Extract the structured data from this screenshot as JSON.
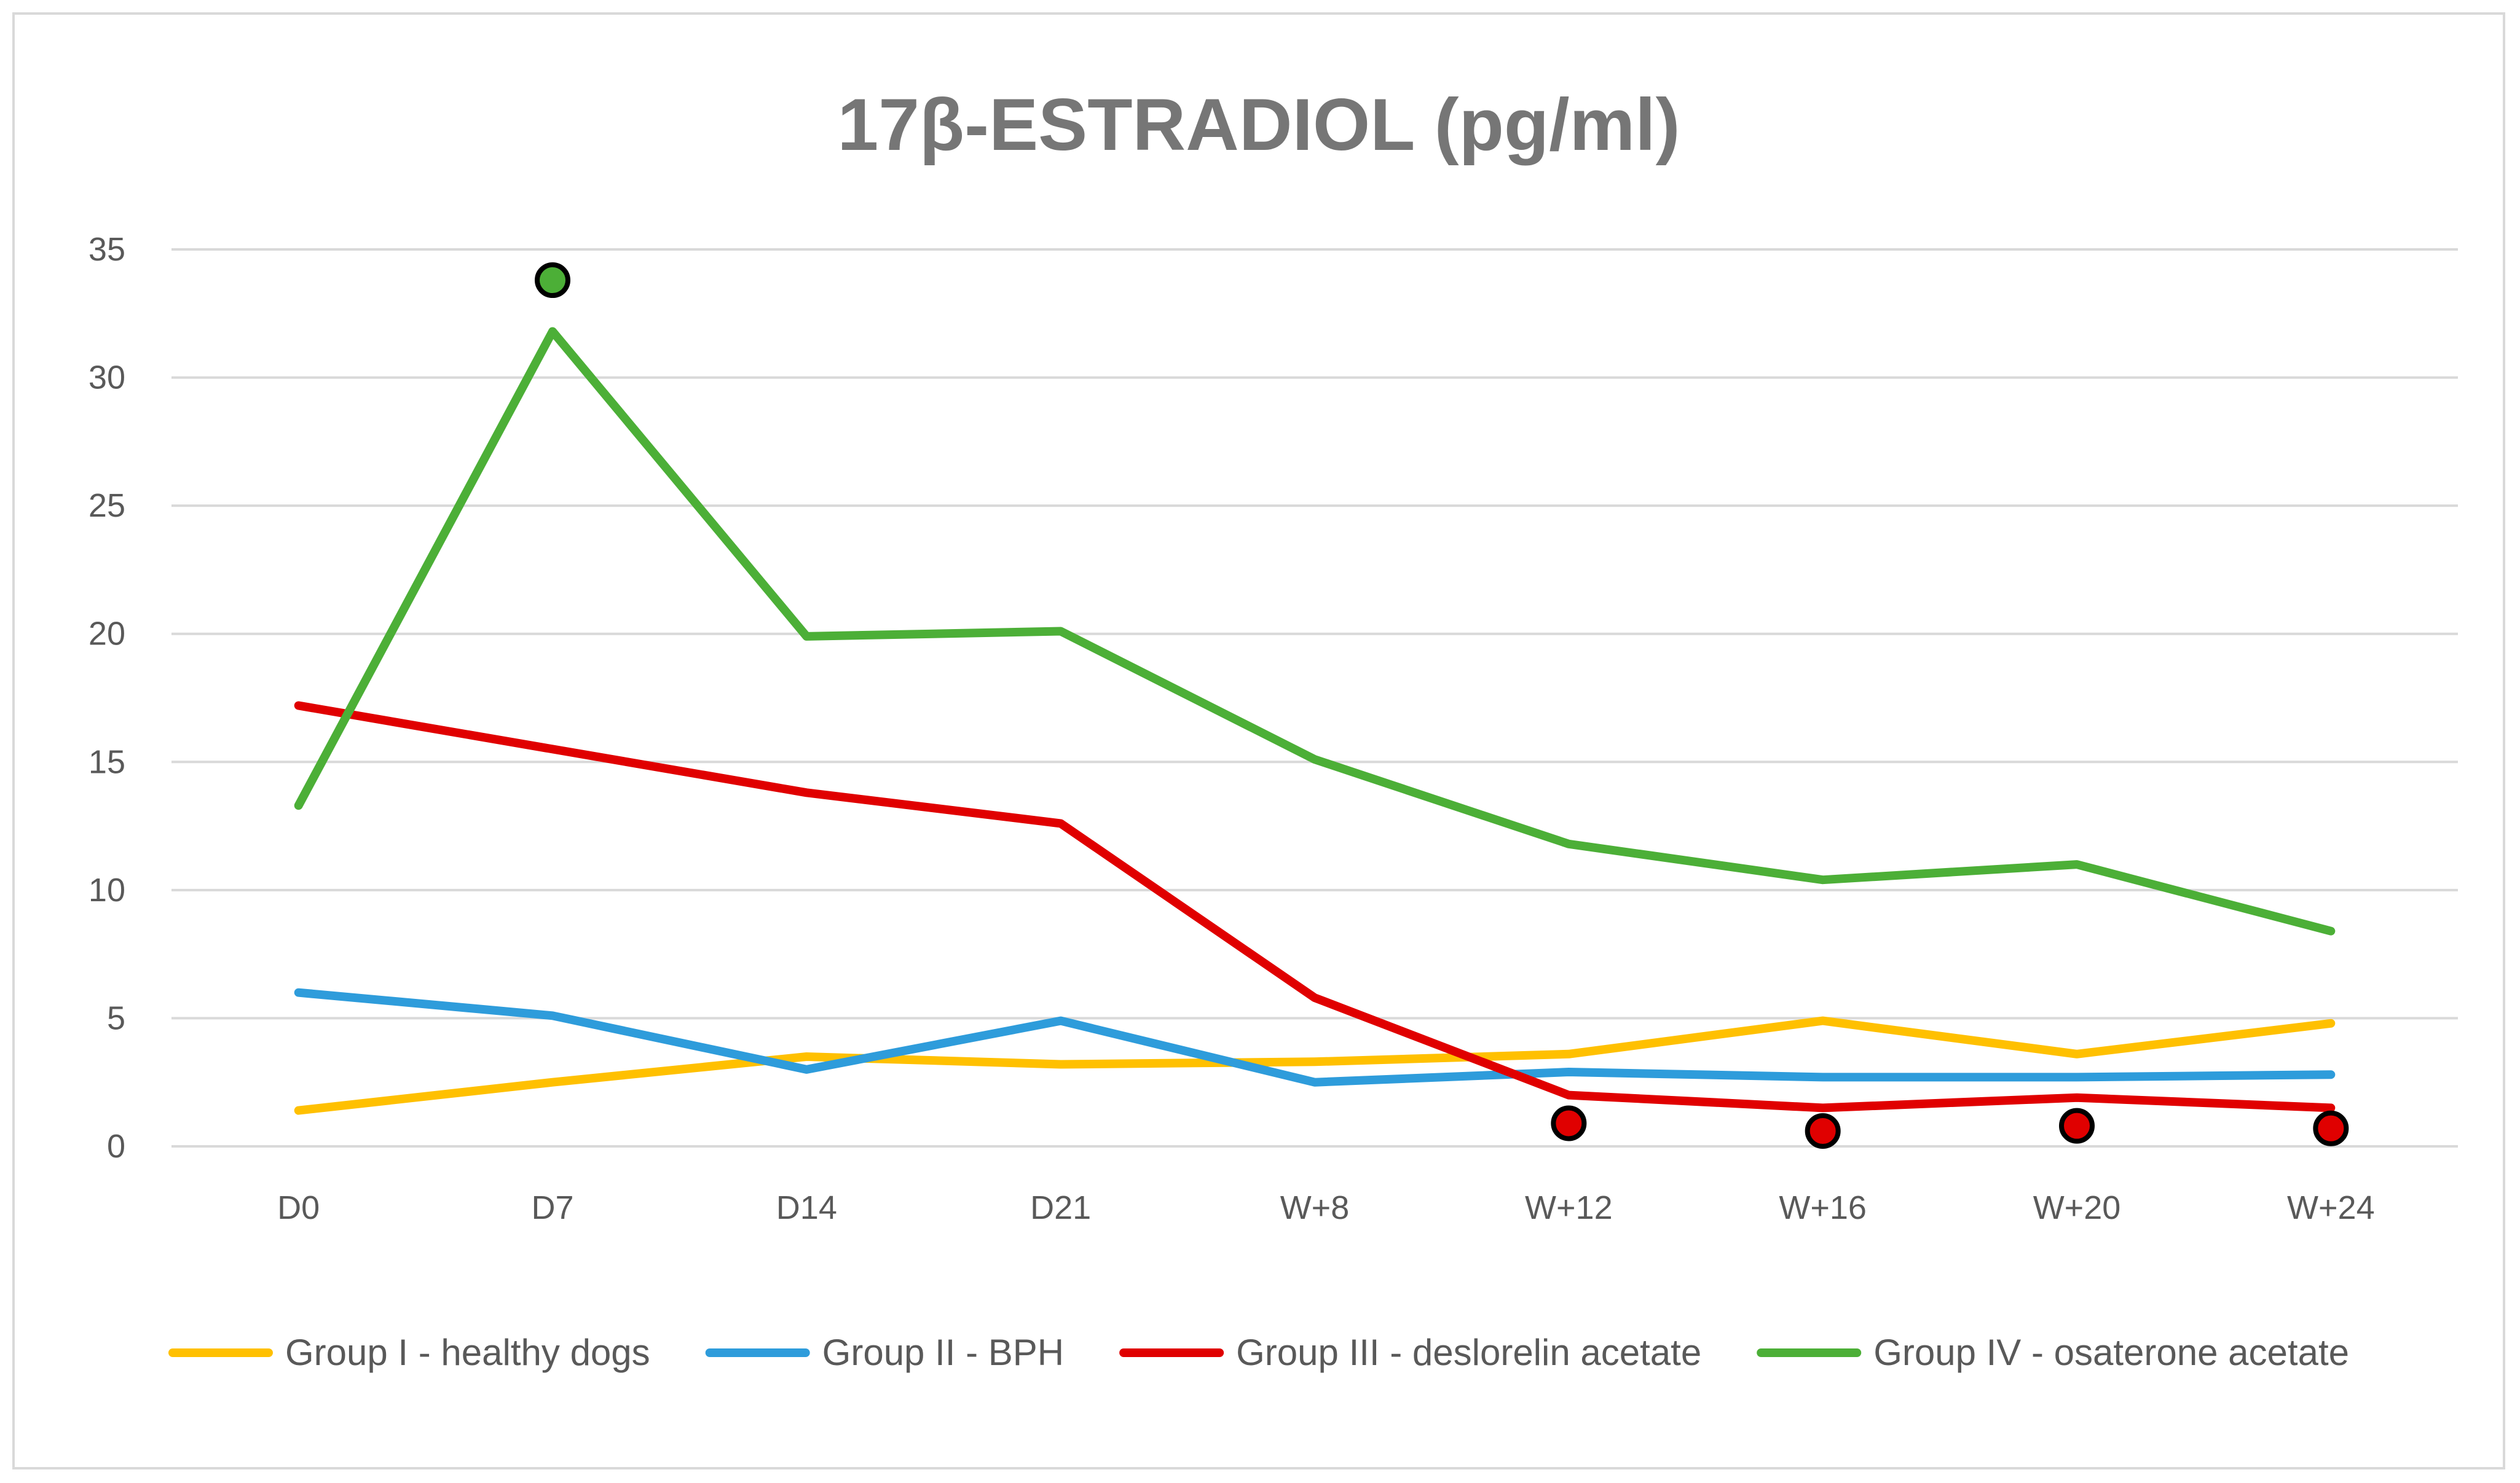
{
  "chart_data": {
    "type": "line",
    "title": "17β-ESTRADIOL (pg/ml)",
    "xlabel": "",
    "ylabel": "",
    "ylim": [
      0,
      35
    ],
    "yticks": [
      0,
      5,
      10,
      15,
      20,
      25,
      30,
      35
    ],
    "grid": true,
    "legend_position": "bottom",
    "categories": [
      "D0",
      "D7",
      "D14",
      "D21",
      "W+8",
      "W+12",
      "W+16",
      "W+20",
      "W+24"
    ],
    "series": [
      {
        "name": "Group I - healthy dogs",
        "color": "#FFC000",
        "values": [
          1.4,
          2.5,
          3.5,
          3.2,
          3.3,
          3.6,
          4.9,
          3.6,
          4.8
        ]
      },
      {
        "name": "Group II - BPH",
        "color": "#2E9CDB",
        "values": [
          6.0,
          5.1,
          3.0,
          4.9,
          2.5,
          2.9,
          2.7,
          2.7,
          2.8
        ]
      },
      {
        "name": "Group III - deslorelin acetate",
        "color": "#E00000",
        "values": [
          17.2,
          15.5,
          13.8,
          12.6,
          5.8,
          2.0,
          1.5,
          1.9,
          1.5
        ]
      },
      {
        "name": "Group IV - osaterone acetate",
        "color": "#4CAF37",
        "values": [
          13.3,
          31.8,
          19.9,
          20.1,
          15.1,
          11.8,
          10.4,
          11.0,
          8.4
        ]
      }
    ],
    "annotations": [
      {
        "type": "significance-dot",
        "series": "Group IV - osaterone acetate",
        "color": "#4CAF37",
        "x": "D7",
        "y": 33.8
      },
      {
        "type": "significance-dot",
        "series": "Group III - deslorelin acetate",
        "color": "#E00000",
        "x": "W+12",
        "y": 0.9
      },
      {
        "type": "significance-dot",
        "series": "Group III - deslorelin acetate",
        "color": "#E00000",
        "x": "W+16",
        "y": 0.6
      },
      {
        "type": "significance-dot",
        "series": "Group III - deslorelin acetate",
        "color": "#E00000",
        "x": "W+20",
        "y": 0.8
      },
      {
        "type": "significance-dot",
        "series": "Group III - deslorelin acetate",
        "color": "#E00000",
        "x": "W+24",
        "y": 0.7
      }
    ]
  }
}
